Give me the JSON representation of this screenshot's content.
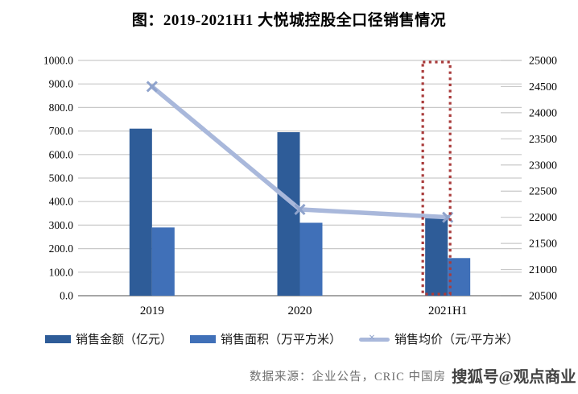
{
  "title": "图：2019-2021H1 大悦城控股全口径销售情况",
  "source": {
    "text": "数据来源：企业公告，CRIC 中国房"
  },
  "watermark": {
    "text": "搜狐号@观点商业"
  },
  "colors": {
    "bar_sales_amount": "#2E5C98",
    "bar_sales_area": "#4070B8",
    "line_avg_price": "#A9B8DB",
    "line_marker": "#8FA3CC",
    "grid": "#C9C9C9",
    "axis": "#8C8C8C",
    "highlight_red": "#A93B3B",
    "source_text": "#707070"
  },
  "chart_data": {
    "type": "bar",
    "title": "图：2019-2021H1 大悦城控股全口径销售情况",
    "categories": [
      "2019",
      "2020",
      "2021H1"
    ],
    "series": [
      {
        "name": "销售金额（亿元）",
        "type": "bar",
        "axis": "left",
        "values": [
          710,
          695,
          335
        ]
      },
      {
        "name": "销售面积（万平方米）",
        "type": "bar",
        "axis": "left",
        "values": [
          290,
          310,
          160
        ]
      },
      {
        "name": "销售均价（元/平方米）",
        "type": "line",
        "axis": "right",
        "values": [
          24500,
          22150,
          22000
        ]
      }
    ],
    "left_axis": {
      "min": 0,
      "max": 1000,
      "step": 100,
      "format": "one_decimal"
    },
    "right_axis": {
      "min": 20500,
      "max": 25000,
      "step": 500,
      "format": "integer"
    },
    "grid": true,
    "legend_position": "bottom",
    "highlight": {
      "category": "2021H1",
      "series": "销售金额（亿元）",
      "style": "red-dotted-rectangle"
    }
  }
}
